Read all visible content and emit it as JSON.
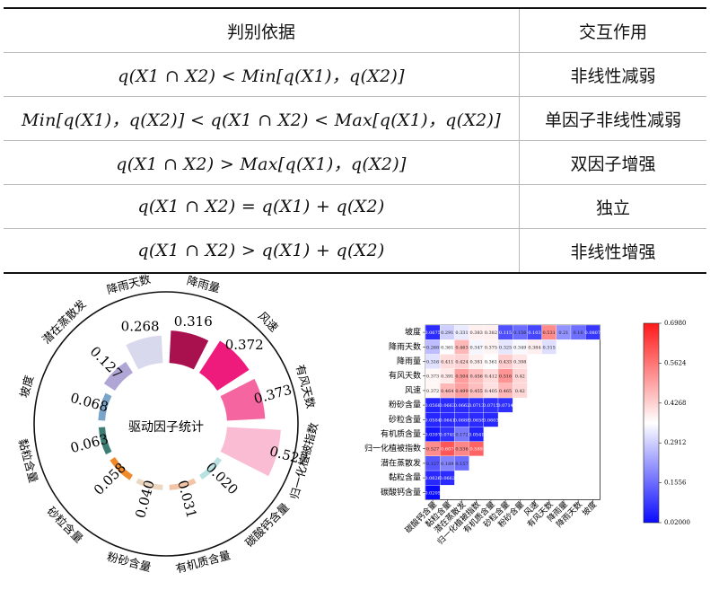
{
  "table": {
    "headers": [
      "判别依据",
      "交互作用"
    ],
    "rows": [
      {
        "criterion": "q(X1 ∩ X2) < Min[q(X1)，q(X2)]",
        "interaction": "非线性减弱"
      },
      {
        "criterion": "Min[q(X1)，q(X2)] < q(X1 ∩ X2) < Max[q(X1)，q(X2)]",
        "interaction": "单因子非线性减弱"
      },
      {
        "criterion": "q(X1 ∩ X2) > Max[q(X1)，q(X2)]",
        "interaction": "双因子增强"
      },
      {
        "criterion": "q(X1 ∩ X2) = q(X1) + q(X2)",
        "interaction": "独立"
      },
      {
        "criterion": "q(X1 ∩ X2) > q(X1) + q(X2)",
        "interaction": "非线性增强"
      }
    ]
  },
  "chart_data": [
    {
      "type": "bar",
      "layout": "circular",
      "center_label": "驱动因子统计",
      "categories": [
        "降雨量",
        "风速",
        "有风天数",
        "归一化植被指数",
        "碳酸钙含量",
        "有机质含量",
        "粉砂含量",
        "砂粒含量",
        "黏粒含量",
        "坡度",
        "潜在蒸散发",
        "降雨天数"
      ],
      "values": [
        0.316,
        0.372,
        0.373,
        0.527,
        0.02,
        0.031,
        0.04,
        0.058,
        0.063,
        0.068,
        0.127,
        0.268
      ],
      "value_labels": [
        "0.316",
        "0.372",
        "0.373",
        "0.527",
        "0.020",
        "0.031",
        "0.040",
        "0.058",
        "0.063",
        "0.068",
        "0.127",
        "0.268"
      ],
      "colors": [
        "#a8114e",
        "#ee1b7c",
        "#f5659f",
        "#f9bcd3",
        "#b9e1e1",
        "#f2c4a8",
        "#ecd8c2",
        "#ef8a2a",
        "#3e7d73",
        "#7aa4c8",
        "#b0a6d6",
        "#d9d9ee"
      ]
    },
    {
      "type": "heatmap",
      "labels": [
        "碳酸钙含量",
        "黏粒含量",
        "潜在蒸散发",
        "归一化植被指数",
        "有机质含量",
        "砂粒含量",
        "粉砂含量",
        "风速",
        "有风天数",
        "降雨量",
        "降雨天数",
        "坡度"
      ],
      "matrix": [
        [
          0.0205
        ],
        [
          0.0626,
          0.0662
        ],
        [
          0.127,
          0.189,
          0.157
        ],
        [
          0.527,
          0.607,
          0.536,
          0.589
        ],
        [
          0.0397,
          0.0749,
          0.172,
          0.0541
        ],
        [
          0.0584,
          0.0641,
          0.0688,
          0.0658,
          0.0603
        ],
        [
          0.0568,
          0.0663,
          0.0662,
          0.0713,
          0.0715,
          0.0714
        ],
        [
          0.372,
          0.464,
          0.499,
          0.455,
          0.405,
          0.465,
          0.42
        ],
        [
          0.373,
          0.391,
          0.504,
          0.456,
          0.412,
          0.516,
          0.42
        ],
        [
          0.316,
          0.411,
          0.424,
          0.381,
          0.361,
          0.433,
          0.398
        ],
        [
          0.268,
          0.361,
          0.463,
          0.347,
          0.375,
          0.325,
          0.349,
          0.384,
          0.315
        ],
        [
          0.0675,
          0.291,
          0.331,
          0.383,
          0.382,
          0.115,
          0.156,
          0.103,
          0.531,
          0.21,
          0.16,
          0.0807
        ]
      ],
      "colorbar_ticks": [
        "0.6980",
        "0.5624",
        "0.4268",
        "0.2912",
        "0.1556",
        "0.02000"
      ],
      "vmin": 0.02,
      "vmax": 0.698
    }
  ]
}
